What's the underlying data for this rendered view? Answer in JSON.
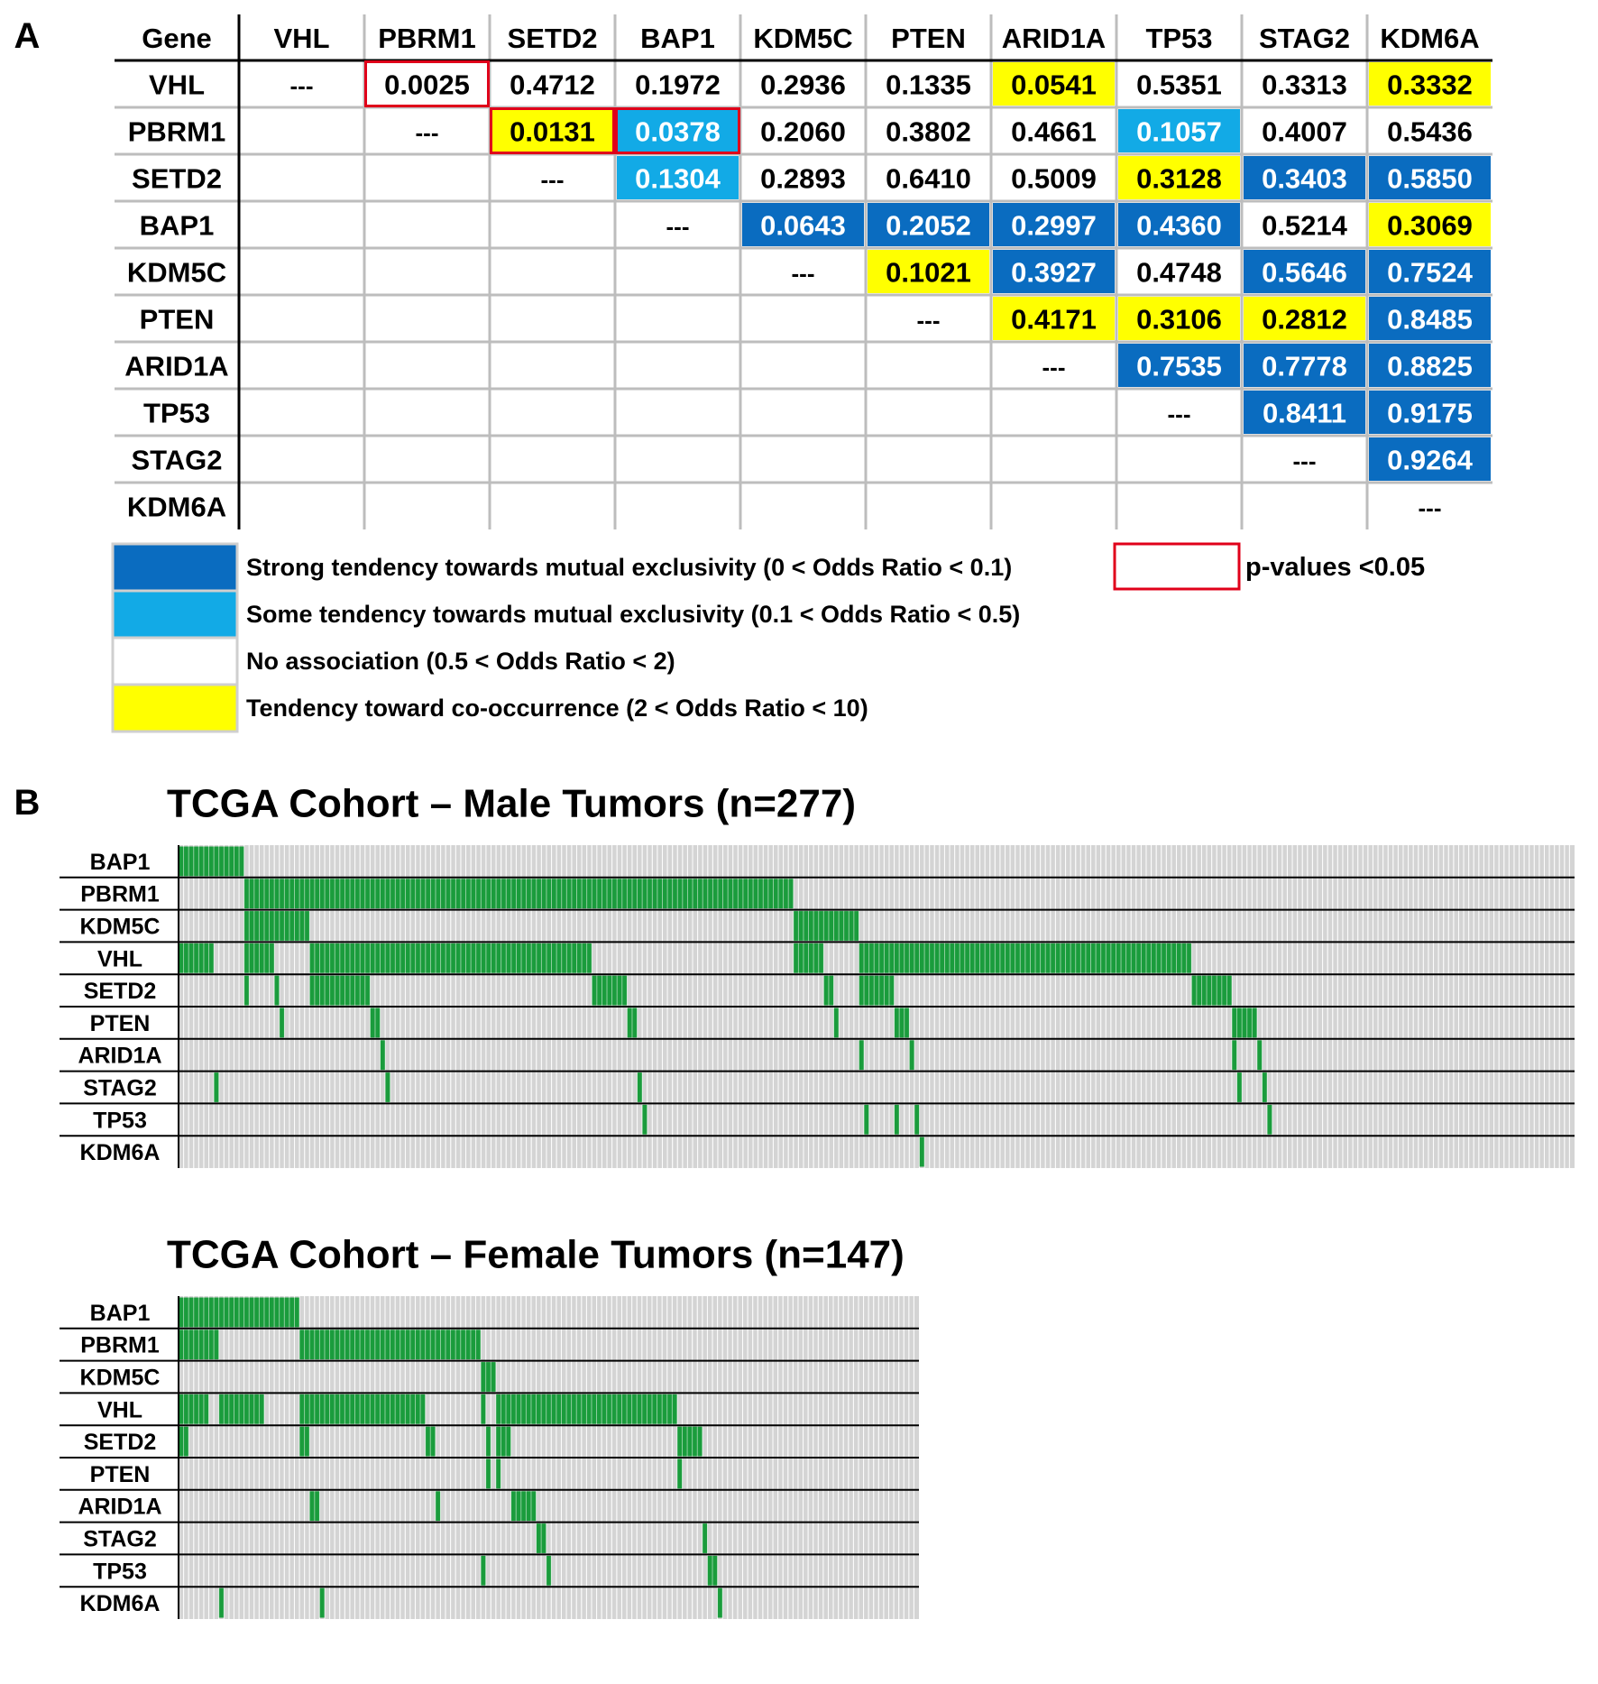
{
  "colors": {
    "strong_exclusive": "#0a6cc0",
    "some_exclusive": "#12aae6",
    "no_association": "#ffffff",
    "co_occurrence": "#ffff00",
    "significant_outline": "#e0001a",
    "mutation": "#1a9c3c",
    "no_mutation": "#d4d4d4",
    "grid": "#bdbdbd",
    "text_on_dark": "#ffffff",
    "text": "#000000"
  },
  "panel_a": {
    "label": "A",
    "corner_header": "Gene",
    "diagonal": "---",
    "legend": [
      {
        "key": "strong",
        "label": "Strong tendency towards mutual exclusivity (0 < Odds Ratio < 0.1)"
      },
      {
        "key": "some",
        "label": "Some tendency towards mutual exclusivity (0.1 < Odds Ratio < 0.5)"
      },
      {
        "key": "none",
        "label": "No association (0.5 < Odds Ratio < 2)"
      },
      {
        "key": "co",
        "label": "Tendency toward co-occurrence (2 < Odds Ratio < 10)"
      }
    ],
    "pvalue_legend": "p-values <0.05"
  },
  "panel_b": {
    "label": "B",
    "male_title": "TCGA Cohort – Male Tumors (n=277)",
    "female_title": "TCGA Cohort – Female Tumors (n=147)"
  },
  "chart_data": [
    {
      "type": "table",
      "genes": [
        "VHL",
        "PBRM1",
        "SETD2",
        "BAP1",
        "KDM5C",
        "PTEN",
        "ARID1A",
        "TP53",
        "STAG2",
        "KDM6A"
      ],
      "cells": [
        {
          "row": "VHL",
          "col": "PBRM1",
          "value": "0.0025",
          "category": "none",
          "significant": true
        },
        {
          "row": "VHL",
          "col": "SETD2",
          "value": "0.4712",
          "category": "none",
          "significant": false
        },
        {
          "row": "VHL",
          "col": "BAP1",
          "value": "0.1972",
          "category": "none",
          "significant": false
        },
        {
          "row": "VHL",
          "col": "KDM5C",
          "value": "0.2936",
          "category": "none",
          "significant": false
        },
        {
          "row": "VHL",
          "col": "PTEN",
          "value": "0.1335",
          "category": "none",
          "significant": false
        },
        {
          "row": "VHL",
          "col": "ARID1A",
          "value": "0.0541",
          "category": "co",
          "significant": false
        },
        {
          "row": "VHL",
          "col": "TP53",
          "value": "0.5351",
          "category": "none",
          "significant": false
        },
        {
          "row": "VHL",
          "col": "STAG2",
          "value": "0.3313",
          "category": "none",
          "significant": false
        },
        {
          "row": "VHL",
          "col": "KDM6A",
          "value": "0.3332",
          "category": "co",
          "significant": false
        },
        {
          "row": "PBRM1",
          "col": "SETD2",
          "value": "0.0131",
          "category": "co",
          "significant": true
        },
        {
          "row": "PBRM1",
          "col": "BAP1",
          "value": "0.0378",
          "category": "some",
          "significant": true
        },
        {
          "row": "PBRM1",
          "col": "KDM5C",
          "value": "0.2060",
          "category": "none",
          "significant": false
        },
        {
          "row": "PBRM1",
          "col": "PTEN",
          "value": "0.3802",
          "category": "none",
          "significant": false
        },
        {
          "row": "PBRM1",
          "col": "ARID1A",
          "value": "0.4661",
          "category": "none",
          "significant": false
        },
        {
          "row": "PBRM1",
          "col": "TP53",
          "value": "0.1057",
          "category": "some",
          "significant": false
        },
        {
          "row": "PBRM1",
          "col": "STAG2",
          "value": "0.4007",
          "category": "none",
          "significant": false
        },
        {
          "row": "PBRM1",
          "col": "KDM6A",
          "value": "0.5436",
          "category": "none",
          "significant": false
        },
        {
          "row": "SETD2",
          "col": "BAP1",
          "value": "0.1304",
          "category": "some",
          "significant": false
        },
        {
          "row": "SETD2",
          "col": "KDM5C",
          "value": "0.2893",
          "category": "none",
          "significant": false
        },
        {
          "row": "SETD2",
          "col": "PTEN",
          "value": "0.6410",
          "category": "none",
          "significant": false
        },
        {
          "row": "SETD2",
          "col": "ARID1A",
          "value": "0.5009",
          "category": "none",
          "significant": false
        },
        {
          "row": "SETD2",
          "col": "TP53",
          "value": "0.3128",
          "category": "co",
          "significant": false
        },
        {
          "row": "SETD2",
          "col": "STAG2",
          "value": "0.3403",
          "category": "strong",
          "significant": false
        },
        {
          "row": "SETD2",
          "col": "KDM6A",
          "value": "0.5850",
          "category": "strong",
          "significant": false
        },
        {
          "row": "BAP1",
          "col": "KDM5C",
          "value": "0.0643",
          "category": "strong",
          "significant": false
        },
        {
          "row": "BAP1",
          "col": "PTEN",
          "value": "0.2052",
          "category": "strong",
          "significant": false
        },
        {
          "row": "BAP1",
          "col": "ARID1A",
          "value": "0.2997",
          "category": "strong",
          "significant": false
        },
        {
          "row": "BAP1",
          "col": "TP53",
          "value": "0.4360",
          "category": "strong",
          "significant": false
        },
        {
          "row": "BAP1",
          "col": "STAG2",
          "value": "0.5214",
          "category": "none",
          "significant": false
        },
        {
          "row": "BAP1",
          "col": "KDM6A",
          "value": "0.3069",
          "category": "co",
          "significant": false
        },
        {
          "row": "KDM5C",
          "col": "PTEN",
          "value": "0.1021",
          "category": "co",
          "significant": false
        },
        {
          "row": "KDM5C",
          "col": "ARID1A",
          "value": "0.3927",
          "category": "strong",
          "significant": false
        },
        {
          "row": "KDM5C",
          "col": "TP53",
          "value": "0.4748",
          "category": "none",
          "significant": false
        },
        {
          "row": "KDM5C",
          "col": "STAG2",
          "value": "0.5646",
          "category": "strong",
          "significant": false
        },
        {
          "row": "KDM5C",
          "col": "KDM6A",
          "value": "0.7524",
          "category": "strong",
          "significant": false
        },
        {
          "row": "PTEN",
          "col": "ARID1A",
          "value": "0.4171",
          "category": "co",
          "significant": false
        },
        {
          "row": "PTEN",
          "col": "TP53",
          "value": "0.3106",
          "category": "co",
          "significant": false
        },
        {
          "row": "PTEN",
          "col": "STAG2",
          "value": "0.2812",
          "category": "co",
          "significant": false
        },
        {
          "row": "PTEN",
          "col": "KDM6A",
          "value": "0.8485",
          "category": "strong",
          "significant": false
        },
        {
          "row": "ARID1A",
          "col": "TP53",
          "value": "0.7535",
          "category": "strong",
          "significant": false
        },
        {
          "row": "ARID1A",
          "col": "STAG2",
          "value": "0.7778",
          "category": "strong",
          "significant": false
        },
        {
          "row": "ARID1A",
          "col": "KDM6A",
          "value": "0.8825",
          "category": "strong",
          "significant": false
        },
        {
          "row": "TP53",
          "col": "STAG2",
          "value": "0.8411",
          "category": "strong",
          "significant": false
        },
        {
          "row": "TP53",
          "col": "KDM6A",
          "value": "0.9175",
          "category": "strong",
          "significant": false
        },
        {
          "row": "STAG2",
          "col": "KDM6A",
          "value": "0.9264",
          "category": "strong",
          "significant": false
        }
      ]
    },
    {
      "type": "heatmap",
      "title": "TCGA Cohort – Male Tumors (n=277)",
      "n_samples": 277,
      "genes": [
        "BAP1",
        "PBRM1",
        "KDM5C",
        "VHL",
        "SETD2",
        "PTEN",
        "ARID1A",
        "STAG2",
        "TP53",
        "KDM6A"
      ],
      "mutated_ranges": [
        {
          "gene": "BAP1",
          "ranges": [
            [
              0,
              13
            ]
          ]
        },
        {
          "gene": "PBRM1",
          "ranges": [
            [
              13,
              122
            ]
          ]
        },
        {
          "gene": "KDM5C",
          "ranges": [
            [
              13,
              26
            ],
            [
              122,
              135
            ]
          ]
        },
        {
          "gene": "VHL",
          "ranges": [
            [
              0,
              7
            ],
            [
              13,
              19
            ],
            [
              26,
              82
            ],
            [
              122,
              128
            ],
            [
              135,
              201
            ]
          ]
        },
        {
          "gene": "SETD2",
          "ranges": [
            [
              13,
              14
            ],
            [
              19,
              20
            ],
            [
              26,
              38
            ],
            [
              82,
              89
            ],
            [
              128,
              130
            ],
            [
              135,
              142
            ],
            [
              201,
              209
            ]
          ]
        },
        {
          "gene": "PTEN",
          "ranges": [
            [
              20,
              21
            ],
            [
              38,
              40
            ],
            [
              89,
              91
            ],
            [
              130,
              131
            ],
            [
              142,
              145
            ],
            [
              209,
              214
            ]
          ]
        },
        {
          "gene": "ARID1A",
          "ranges": [
            [
              40,
              41
            ],
            [
              135,
              136
            ],
            [
              145,
              146
            ],
            [
              209,
              210
            ],
            [
              214,
              215
            ]
          ]
        },
        {
          "gene": "STAG2",
          "ranges": [
            [
              7,
              8
            ],
            [
              41,
              42
            ],
            [
              91,
              92
            ],
            [
              210,
              211
            ],
            [
              215,
              216
            ]
          ]
        },
        {
          "gene": "TP53",
          "ranges": [
            [
              92,
              93
            ],
            [
              136,
              137
            ],
            [
              142,
              143
            ],
            [
              146,
              147
            ],
            [
              216,
              217
            ]
          ]
        },
        {
          "gene": "KDM6A",
          "ranges": [
            [
              147,
              148
            ]
          ]
        }
      ]
    },
    {
      "type": "heatmap",
      "title": "TCGA Cohort – Female Tumors (n=147)",
      "n_samples": 147,
      "genes": [
        "BAP1",
        "PBRM1",
        "KDM5C",
        "VHL",
        "SETD2",
        "PTEN",
        "ARID1A",
        "STAG2",
        "TP53",
        "KDM6A"
      ],
      "mutated_ranges": [
        {
          "gene": "BAP1",
          "ranges": [
            [
              0,
              24
            ]
          ]
        },
        {
          "gene": "PBRM1",
          "ranges": [
            [
              0,
              8
            ],
            [
              24,
              60
            ]
          ]
        },
        {
          "gene": "KDM5C",
          "ranges": [
            [
              60,
              63
            ]
          ]
        },
        {
          "gene": "VHL",
          "ranges": [
            [
              0,
              6
            ],
            [
              8,
              17
            ],
            [
              24,
              49
            ],
            [
              60,
              61
            ],
            [
              63,
              99
            ]
          ]
        },
        {
          "gene": "SETD2",
          "ranges": [
            [
              0,
              2
            ],
            [
              24,
              26
            ],
            [
              49,
              51
            ],
            [
              61,
              62
            ],
            [
              63,
              66
            ],
            [
              99,
              104
            ]
          ]
        },
        {
          "gene": "PTEN",
          "ranges": [
            [
              61,
              62
            ],
            [
              63,
              64
            ],
            [
              99,
              100
            ]
          ]
        },
        {
          "gene": "ARID1A",
          "ranges": [
            [
              26,
              28
            ],
            [
              51,
              52
            ],
            [
              66,
              71
            ]
          ]
        },
        {
          "gene": "STAG2",
          "ranges": [
            [
              71,
              73
            ],
            [
              104,
              105
            ]
          ]
        },
        {
          "gene": "TP53",
          "ranges": [
            [
              60,
              61
            ],
            [
              73,
              74
            ],
            [
              105,
              107
            ]
          ]
        },
        {
          "gene": "KDM6A",
          "ranges": [
            [
              8,
              9
            ],
            [
              28,
              29
            ],
            [
              107,
              108
            ]
          ]
        }
      ]
    }
  ]
}
